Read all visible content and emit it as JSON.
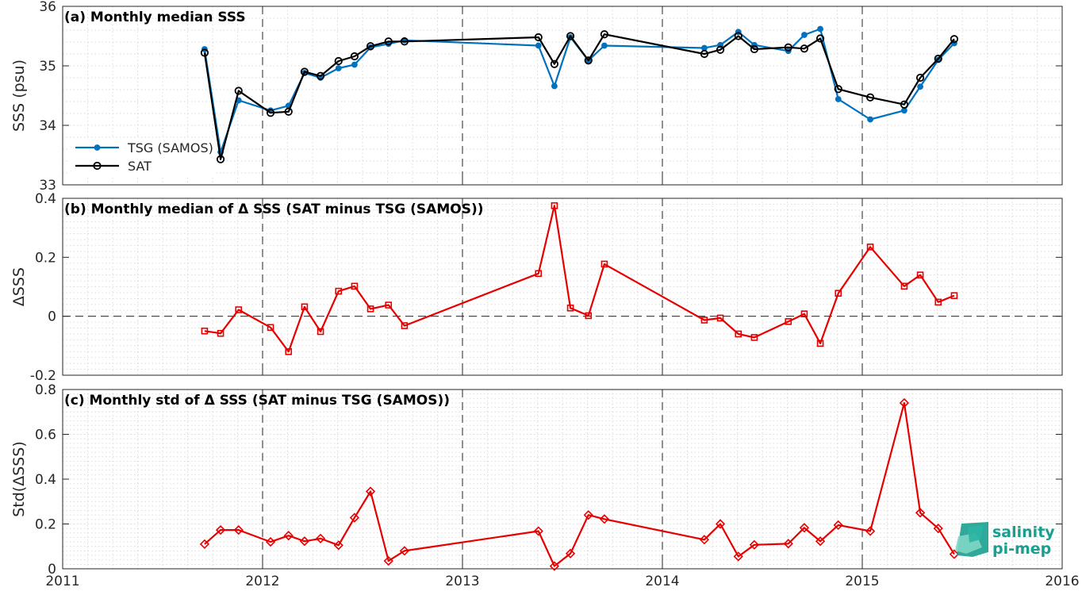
{
  "colors": {
    "tsg": "#0072BD",
    "sat": "#000000",
    "delta": "#E60000",
    "grid": "#d8d8d8",
    "logo": "#1a9e8f"
  },
  "logo": {
    "line1": "salinity",
    "line2": "pi-mep"
  },
  "chart_data": [
    {
      "id": "a",
      "type": "line",
      "title": "(a) Monthly median SSS",
      "ylabel": "SSS (psu)",
      "ylim": [
        33,
        36
      ],
      "yticks": [
        "33",
        "34",
        "35",
        "36"
      ],
      "xlim": [
        2011,
        2016
      ],
      "xticks": [
        "2011",
        "2012",
        "2013",
        "2014",
        "2015",
        "2016"
      ],
      "legend": {
        "location": "lower-left"
      },
      "series": [
        {
          "name": "TSG (SAMOS)",
          "marker": "dot",
          "color": "#0072BD",
          "x": [
            2011.71,
            2011.79,
            2011.88,
            2012.04,
            2012.13,
            2012.21,
            2012.29,
            2012.38,
            2012.46,
            2012.54,
            2012.63,
            2012.71,
            2013.38,
            2013.46,
            2013.54,
            2013.63,
            2013.71,
            2014.21,
            2014.29,
            2014.38,
            2014.46,
            2014.63,
            2014.71,
            2014.79,
            2014.88,
            2015.04,
            2015.21,
            2015.29,
            2015.38,
            2015.46
          ],
          "y": [
            35.28,
            33.55,
            34.42,
            34.25,
            34.33,
            34.88,
            34.8,
            34.96,
            35.02,
            35.31,
            35.37,
            35.43,
            35.34,
            34.66,
            35.48,
            35.09,
            35.34,
            35.3,
            35.35,
            35.57,
            35.35,
            35.25,
            35.52,
            35.62,
            34.44,
            34.1,
            34.25,
            34.65,
            35.1,
            35.38
          ]
        },
        {
          "name": "SAT",
          "marker": "circle",
          "color": "#000000",
          "x": [
            2011.71,
            2011.79,
            2011.88,
            2012.04,
            2012.13,
            2012.21,
            2012.29,
            2012.38,
            2012.46,
            2012.54,
            2012.63,
            2012.71,
            2013.38,
            2013.46,
            2013.54,
            2013.63,
            2013.71,
            2014.21,
            2014.29,
            2014.38,
            2014.46,
            2014.63,
            2014.71,
            2014.79,
            2014.88,
            2015.04,
            2015.21,
            2015.29,
            2015.38,
            2015.46
          ],
          "y": [
            35.22,
            33.43,
            34.58,
            34.21,
            34.23,
            34.9,
            34.83,
            35.08,
            35.16,
            35.33,
            35.41,
            35.41,
            35.48,
            35.03,
            35.5,
            35.09,
            35.53,
            35.2,
            35.27,
            35.5,
            35.28,
            35.31,
            35.29,
            35.46,
            34.61,
            34.47,
            34.35,
            34.8,
            35.12,
            35.45
          ]
        }
      ]
    },
    {
      "id": "b",
      "type": "line",
      "title": "(b) Monthly median of Δ SSS (SAT minus TSG (SAMOS))",
      "ylabel": "ΔSSS",
      "ylim": [
        -0.2,
        0.4
      ],
      "yticks": [
        "-0.2",
        "0",
        "0.2",
        "0.4"
      ],
      "xlim": [
        2011,
        2016
      ],
      "xticks": [
        "2011",
        "2012",
        "2013",
        "2014",
        "2015",
        "2016"
      ],
      "zero_line": true,
      "series": [
        {
          "marker": "square",
          "color": "#E60000",
          "x": [
            2011.71,
            2011.79,
            2011.88,
            2012.04,
            2012.13,
            2012.21,
            2012.29,
            2012.38,
            2012.46,
            2012.54,
            2012.63,
            2012.71,
            2013.38,
            2013.46,
            2013.54,
            2013.63,
            2013.71,
            2014.21,
            2014.29,
            2014.38,
            2014.46,
            2014.63,
            2014.71,
            2014.79,
            2014.88,
            2015.04,
            2015.21,
            2015.29,
            2015.38,
            2015.46
          ],
          "y": [
            -0.05,
            -0.058,
            0.022,
            -0.038,
            -0.12,
            0.032,
            -0.052,
            0.085,
            0.102,
            0.025,
            0.038,
            -0.032,
            0.145,
            0.375,
            0.028,
            0.002,
            0.177,
            -0.013,
            -0.006,
            -0.06,
            -0.072,
            -0.018,
            0.008,
            -0.092,
            0.078,
            0.235,
            0.102,
            0.14,
            0.048,
            0.07
          ]
        }
      ]
    },
    {
      "id": "c",
      "type": "line",
      "title": "(c) Monthly std of Δ SSS (SAT minus TSG (SAMOS))",
      "ylabel": "Std(ΔSSS)",
      "ylim": [
        0,
        0.8
      ],
      "yticks": [
        "0",
        "0.2",
        "0.4",
        "0.6",
        "0.8"
      ],
      "xlim": [
        2011,
        2016
      ],
      "xticks": [
        "2011",
        "2012",
        "2013",
        "2014",
        "2015",
        "2016"
      ],
      "series": [
        {
          "marker": "diamond",
          "color": "#E60000",
          "x": [
            2011.71,
            2011.79,
            2011.88,
            2012.04,
            2012.13,
            2012.21,
            2012.29,
            2012.38,
            2012.46,
            2012.54,
            2012.63,
            2012.71,
            2013.38,
            2013.46,
            2013.54,
            2013.63,
            2013.71,
            2014.21,
            2014.29,
            2014.38,
            2014.46,
            2014.63,
            2014.71,
            2014.79,
            2014.88,
            2015.04,
            2015.21,
            2015.29,
            2015.38,
            2015.46
          ],
          "y": [
            0.11,
            0.173,
            0.173,
            0.12,
            0.148,
            0.123,
            0.135,
            0.105,
            0.228,
            0.345,
            0.035,
            0.08,
            0.168,
            0.012,
            0.068,
            0.24,
            0.222,
            0.13,
            0.2,
            0.055,
            0.107,
            0.112,
            0.183,
            0.123,
            0.195,
            0.168,
            0.74,
            0.25,
            0.18,
            0.065
          ]
        }
      ]
    }
  ]
}
